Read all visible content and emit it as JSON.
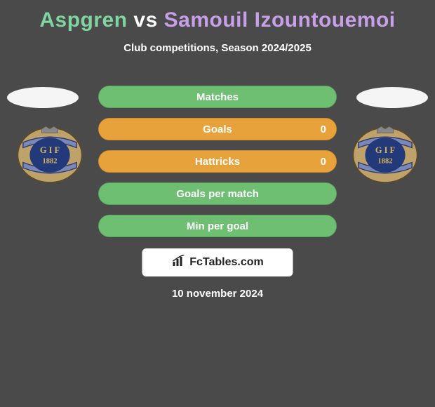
{
  "title": {
    "text": "Aspgren vs Samouil Izountouemoi",
    "player1_color": "#7fd4a0",
    "player2_color": "#c7a0e8"
  },
  "subtitle": "Club competitions, Season 2024/2025",
  "colors": {
    "background": "#4a4a4a",
    "text": "#ffffff",
    "bar_green": "#6fbf73",
    "bar_green_dark": "#5aa35e",
    "bar_orange": "#e8a23c",
    "avatar_oval": "#f5f5f5",
    "brand_box_bg": "#ffffff",
    "brand_text": "#222222"
  },
  "badge": {
    "outer_fill": "#bfa26a",
    "ribbon_fill": "#7a88b8",
    "ribbon_stroke": "#2f3a6b",
    "center_fill": "#223a7a",
    "center_text_fill": "#d9b35a",
    "letters": "G I F",
    "year": "1882"
  },
  "stats": [
    {
      "label": "Matches",
      "value_left": null,
      "value_right": null,
      "fill_pct": 100,
      "fill_color": "#6fbf73",
      "border_color": "#5aa35e"
    },
    {
      "label": "Goals",
      "value_left": null,
      "value_right": "0",
      "fill_pct": 100,
      "fill_color": "#e8a23c",
      "border_color": "#d18c28"
    },
    {
      "label": "Hattricks",
      "value_left": null,
      "value_right": "0",
      "fill_pct": 100,
      "fill_color": "#e8a23c",
      "border_color": "#d18c28"
    },
    {
      "label": "Goals per match",
      "value_left": null,
      "value_right": null,
      "fill_pct": 100,
      "fill_color": "#6fbf73",
      "border_color": "#5aa35e"
    },
    {
      "label": "Min per goal",
      "value_left": null,
      "value_right": null,
      "fill_pct": 100,
      "fill_color": "#6fbf73",
      "border_color": "#5aa35e"
    }
  ],
  "brand": "FcTables.com",
  "date": "10 november 2024"
}
